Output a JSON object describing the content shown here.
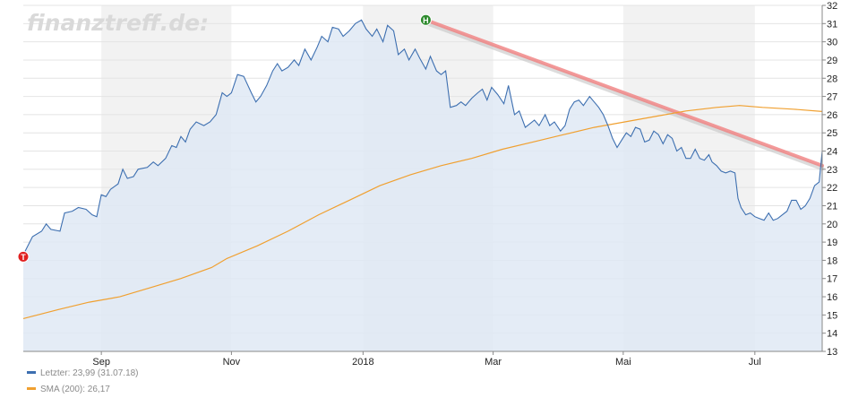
{
  "watermark": "finanztreff.de:",
  "legend": {
    "items": [
      {
        "label": "Letzter: 23,99 (31.07.18)",
        "color": "#3d6fb0"
      },
      {
        "label": "SMA (200): 26,17",
        "color": "#f0a030"
      }
    ]
  },
  "markers": {
    "high": {
      "label": "H",
      "x": 26.0,
      "y": 31.2,
      "color": "#2e8b2e"
    },
    "low": {
      "label": "T",
      "x": -0.3,
      "y": 18.2,
      "color": "#e02020"
    }
  },
  "chart_data": {
    "type": "line",
    "x_unit": "weeks since early August 2017",
    "xlim": [
      -0.3,
      51.9
    ],
    "ylim": [
      13,
      32
    ],
    "y_ticks": [
      13,
      14,
      15,
      16,
      17,
      18,
      19,
      20,
      21,
      22,
      23,
      24,
      25,
      26,
      27,
      28,
      29,
      30,
      31,
      32
    ],
    "x_ticks": [
      {
        "label": "Sep",
        "x": 4.8
      },
      {
        "label": "Nov",
        "x": 13.3
      },
      {
        "label": "2018",
        "x": 21.9
      },
      {
        "label": "Mar",
        "x": 30.4
      },
      {
        "label": "Mai",
        "x": 38.9
      },
      {
        "label": "Jul",
        "x": 47.5
      }
    ],
    "shaded_bands": [
      [
        4.8,
        13.3
      ],
      [
        21.9,
        30.4
      ],
      [
        38.9,
        47.5
      ]
    ],
    "grid": "horizontal",
    "series": [
      {
        "name": "Letzter",
        "color": "#3d6fb0",
        "fill": "#dfe9f5",
        "points": [
          [
            -0.3,
            18.3
          ],
          [
            0.3,
            19.3
          ],
          [
            0.9,
            19.6
          ],
          [
            1.2,
            20.0
          ],
          [
            1.5,
            19.7
          ],
          [
            2.1,
            19.6
          ],
          [
            2.4,
            20.6
          ],
          [
            2.9,
            20.7
          ],
          [
            3.3,
            20.9
          ],
          [
            3.8,
            20.8
          ],
          [
            4.2,
            20.5
          ],
          [
            4.5,
            20.4
          ],
          [
            4.8,
            21.6
          ],
          [
            5.1,
            21.5
          ],
          [
            5.4,
            21.9
          ],
          [
            5.9,
            22.2
          ],
          [
            6.2,
            23.0
          ],
          [
            6.5,
            22.5
          ],
          [
            6.9,
            22.6
          ],
          [
            7.2,
            23.0
          ],
          [
            7.8,
            23.1
          ],
          [
            8.2,
            23.4
          ],
          [
            8.5,
            23.2
          ],
          [
            9.0,
            23.6
          ],
          [
            9.4,
            24.3
          ],
          [
            9.7,
            24.2
          ],
          [
            10.0,
            24.8
          ],
          [
            10.3,
            24.5
          ],
          [
            10.6,
            25.2
          ],
          [
            11.0,
            25.6
          ],
          [
            11.5,
            25.4
          ],
          [
            11.9,
            25.6
          ],
          [
            12.3,
            26.0
          ],
          [
            12.7,
            27.2
          ],
          [
            13.0,
            27.0
          ],
          [
            13.3,
            27.2
          ],
          [
            13.7,
            28.2
          ],
          [
            14.1,
            28.1
          ],
          [
            14.6,
            27.2
          ],
          [
            14.9,
            26.7
          ],
          [
            15.2,
            27.0
          ],
          [
            15.6,
            27.6
          ],
          [
            16.0,
            28.4
          ],
          [
            16.3,
            28.8
          ],
          [
            16.6,
            28.4
          ],
          [
            17.0,
            28.6
          ],
          [
            17.4,
            29.0
          ],
          [
            17.7,
            28.7
          ],
          [
            18.1,
            29.6
          ],
          [
            18.5,
            29.0
          ],
          [
            18.9,
            29.7
          ],
          [
            19.2,
            30.3
          ],
          [
            19.6,
            30.0
          ],
          [
            19.9,
            30.8
          ],
          [
            20.3,
            30.7
          ],
          [
            20.6,
            30.3
          ],
          [
            21.0,
            30.6
          ],
          [
            21.4,
            31.0
          ],
          [
            21.8,
            31.2
          ],
          [
            22.1,
            30.7
          ],
          [
            22.5,
            30.3
          ],
          [
            22.8,
            30.7
          ],
          [
            23.2,
            30.0
          ],
          [
            23.5,
            30.9
          ],
          [
            23.9,
            30.6
          ],
          [
            24.2,
            29.3
          ],
          [
            24.6,
            29.6
          ],
          [
            24.9,
            29.0
          ],
          [
            25.3,
            29.6
          ],
          [
            25.6,
            29.1
          ],
          [
            26.0,
            28.5
          ],
          [
            26.3,
            29.2
          ],
          [
            26.7,
            28.4
          ],
          [
            27.0,
            28.2
          ],
          [
            27.3,
            28.4
          ],
          [
            27.6,
            26.4
          ],
          [
            28.0,
            26.5
          ],
          [
            28.3,
            26.7
          ],
          [
            28.6,
            26.5
          ],
          [
            29.0,
            26.9
          ],
          [
            29.4,
            27.2
          ],
          [
            29.7,
            27.4
          ],
          [
            30.0,
            26.8
          ],
          [
            30.3,
            27.5
          ],
          [
            30.7,
            27.1
          ],
          [
            31.1,
            26.6
          ],
          [
            31.4,
            27.6
          ],
          [
            31.8,
            26.0
          ],
          [
            32.1,
            26.2
          ],
          [
            32.5,
            25.3
          ],
          [
            32.8,
            25.5
          ],
          [
            33.1,
            25.7
          ],
          [
            33.4,
            25.4
          ],
          [
            33.8,
            26.0
          ],
          [
            34.1,
            25.4
          ],
          [
            34.4,
            25.6
          ],
          [
            34.8,
            25.1
          ],
          [
            35.1,
            25.4
          ],
          [
            35.4,
            26.3
          ],
          [
            35.7,
            26.7
          ],
          [
            36.0,
            26.8
          ],
          [
            36.3,
            26.5
          ],
          [
            36.7,
            27.0
          ],
          [
            37.0,
            26.7
          ],
          [
            37.3,
            26.4
          ],
          [
            37.6,
            26.0
          ],
          [
            37.9,
            25.4
          ],
          [
            38.2,
            24.7
          ],
          [
            38.5,
            24.2
          ],
          [
            38.8,
            24.6
          ],
          [
            39.1,
            25.0
          ],
          [
            39.4,
            24.8
          ],
          [
            39.7,
            25.3
          ],
          [
            40.0,
            25.2
          ],
          [
            40.3,
            24.5
          ],
          [
            40.6,
            24.6
          ],
          [
            40.9,
            25.1
          ],
          [
            41.2,
            24.9
          ],
          [
            41.5,
            24.4
          ],
          [
            41.8,
            24.9
          ],
          [
            42.1,
            24.7
          ],
          [
            42.4,
            24.0
          ],
          [
            42.7,
            24.2
          ],
          [
            43.0,
            23.6
          ],
          [
            43.3,
            23.6
          ],
          [
            43.6,
            24.1
          ],
          [
            43.9,
            23.6
          ],
          [
            44.2,
            23.5
          ],
          [
            44.5,
            23.8
          ],
          [
            44.7,
            23.4
          ],
          [
            45.0,
            23.2
          ],
          [
            45.3,
            22.9
          ],
          [
            45.6,
            22.8
          ],
          [
            45.9,
            22.9
          ],
          [
            46.2,
            22.8
          ],
          [
            46.4,
            21.4
          ],
          [
            46.6,
            20.9
          ],
          [
            46.9,
            20.5
          ],
          [
            47.2,
            20.6
          ],
          [
            47.5,
            20.4
          ],
          [
            47.8,
            20.3
          ],
          [
            48.1,
            20.2
          ],
          [
            48.4,
            20.6
          ],
          [
            48.7,
            20.2
          ],
          [
            49.0,
            20.3
          ],
          [
            49.3,
            20.5
          ],
          [
            49.6,
            20.7
          ],
          [
            49.9,
            21.3
          ],
          [
            50.2,
            21.3
          ],
          [
            50.5,
            20.8
          ],
          [
            50.8,
            21.0
          ],
          [
            51.1,
            21.4
          ],
          [
            51.4,
            22.1
          ],
          [
            51.7,
            22.3
          ],
          [
            51.9,
            23.99
          ]
        ]
      },
      {
        "name": "SMA (200)",
        "color": "#f0a030",
        "points": [
          [
            -0.3,
            14.8
          ],
          [
            2.0,
            15.3
          ],
          [
            4.0,
            15.7
          ],
          [
            6.0,
            16.0
          ],
          [
            8.0,
            16.5
          ],
          [
            10.0,
            17.0
          ],
          [
            12.0,
            17.6
          ],
          [
            13.0,
            18.1
          ],
          [
            15.0,
            18.8
          ],
          [
            17.0,
            19.6
          ],
          [
            19.0,
            20.5
          ],
          [
            21.0,
            21.3
          ],
          [
            23.0,
            22.1
          ],
          [
            25.0,
            22.7
          ],
          [
            27.0,
            23.2
          ],
          [
            29.0,
            23.6
          ],
          [
            31.0,
            24.1
          ],
          [
            33.0,
            24.5
          ],
          [
            35.0,
            24.9
          ],
          [
            37.0,
            25.3
          ],
          [
            39.0,
            25.6
          ],
          [
            41.0,
            25.9
          ],
          [
            43.0,
            26.2
          ],
          [
            45.0,
            26.4
          ],
          [
            46.5,
            26.5
          ],
          [
            48.0,
            26.4
          ],
          [
            50.0,
            26.3
          ],
          [
            51.9,
            26.17
          ]
        ]
      },
      {
        "name": "Trendlinie",
        "color": "#f08080",
        "points": [
          [
            26.0,
            31.2
          ],
          [
            51.9,
            23.2
          ]
        ]
      }
    ]
  }
}
